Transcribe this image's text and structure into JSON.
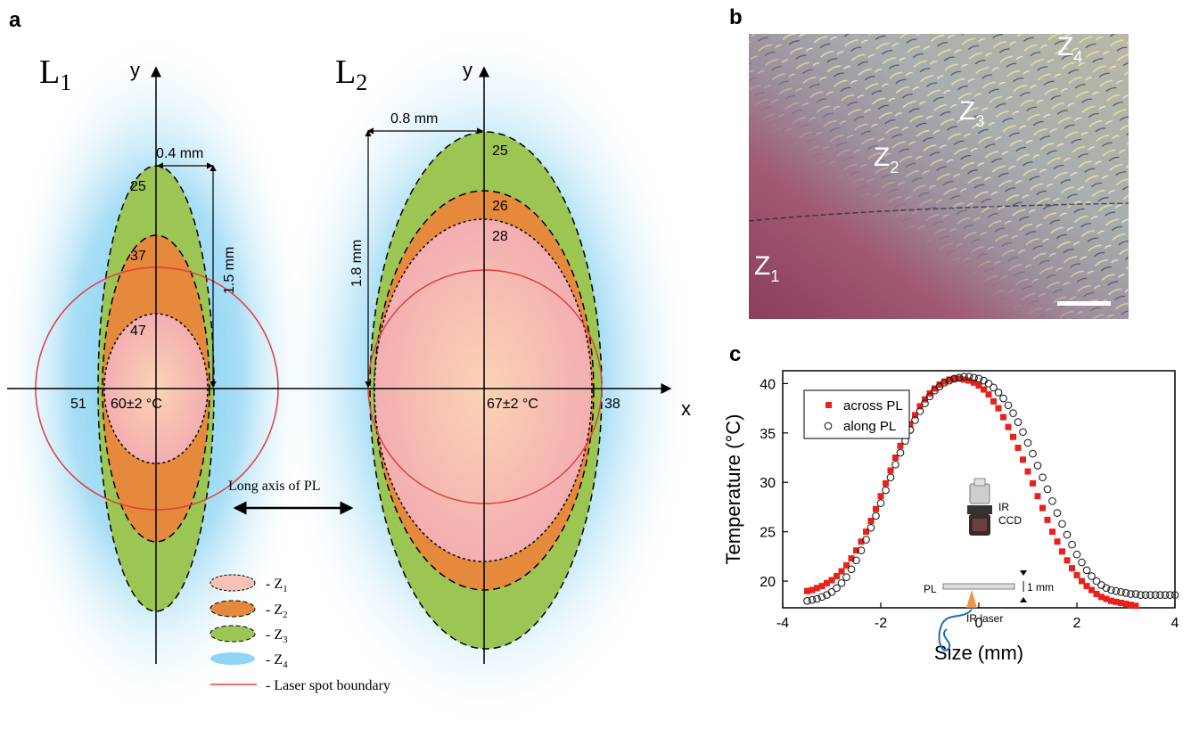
{
  "panel_a": {
    "letter": "a",
    "left": {
      "name": "L",
      "sub": "1",
      "axis_y": "y",
      "width_label": "0.4 mm",
      "height_label": "1.5 mm",
      "temps": [
        "25",
        "37",
        "47",
        "60±2 °C",
        "51"
      ]
    },
    "right": {
      "name": "L",
      "sub": "2",
      "axis_y": "y",
      "width_label": "0.8 mm",
      "height_label": "1.8 mm",
      "temps": [
        "25",
        "26",
        "28",
        "67±2 °C",
        "38"
      ]
    },
    "axis_x": "x",
    "arrow_label": "Long axis of PL",
    "legend": [
      {
        "label": "- Z",
        "sub": "1"
      },
      {
        "label": "- Z",
        "sub": "2"
      },
      {
        "label": "- Z",
        "sub": "3"
      },
      {
        "label": "- Z",
        "sub": "4"
      },
      {
        "label": "- Laser spot boundary",
        "sub": ""
      }
    ],
    "colors": {
      "z1": "#f6c2b8",
      "z2": "#e58a3c",
      "z3": "#9cc653",
      "z4": "#9fdcf4",
      "laser": "#e53c3c"
    }
  },
  "panel_b": {
    "letter": "b",
    "zones": [
      {
        "label": "Z",
        "sub": "1"
      },
      {
        "label": "Z",
        "sub": "2"
      },
      {
        "label": "Z",
        "sub": "3"
      },
      {
        "label": "Z",
        "sub": "4"
      }
    ]
  },
  "panel_c": {
    "letter": "c",
    "inset": {
      "camera": "IR",
      "camera2": "CCD",
      "pl": "PL",
      "thickness": "1 mm",
      "laser": "IR laser"
    }
  },
  "chart_data": {
    "type": "scatter",
    "xlabel": "Size (mm)",
    "ylabel": "Temperature (°C)",
    "xlim": [
      -4,
      4
    ],
    "ylim": [
      17.3,
      41.3
    ],
    "xticks": [
      "-4",
      "-2",
      "0",
      "2",
      "4"
    ],
    "yticks": [
      "20",
      "25",
      "30",
      "35",
      "40"
    ],
    "legend_position": "top-left",
    "series": [
      {
        "name": "across PL",
        "marker": "filled-square",
        "color": "#e8211b",
        "x": [
          -3.5,
          -3.4,
          -3.3,
          -3.2,
          -3.1,
          -3.0,
          -2.9,
          -2.8,
          -2.7,
          -2.6,
          -2.5,
          -2.4,
          -2.3,
          -2.2,
          -2.1,
          -2.0,
          -1.9,
          -1.8,
          -1.7,
          -1.6,
          -1.5,
          -1.4,
          -1.3,
          -1.2,
          -1.1,
          -1.0,
          -0.9,
          -0.8,
          -0.7,
          -0.6,
          -0.5,
          -0.4,
          -0.3,
          -0.2,
          -0.1,
          0.0,
          0.1,
          0.2,
          0.3,
          0.4,
          0.5,
          0.6,
          0.7,
          0.8,
          0.9,
          1.0,
          1.1,
          1.2,
          1.3,
          1.4,
          1.5,
          1.6,
          1.7,
          1.8,
          1.9,
          2.0,
          2.1,
          2.2,
          2.3,
          2.4,
          2.5,
          2.6,
          2.7,
          2.8,
          2.9,
          3.0,
          3.1,
          3.2
        ],
        "y": [
          19.0,
          19.1,
          19.3,
          19.5,
          19.8,
          20.1,
          20.5,
          21.0,
          21.6,
          22.3,
          23.1,
          24.0,
          25.0,
          26.1,
          27.3,
          28.6,
          29.9,
          31.2,
          32.5,
          33.7,
          34.9,
          35.9,
          36.8,
          37.7,
          38.4,
          39.0,
          39.5,
          39.9,
          40.2,
          40.4,
          40.5,
          40.5,
          40.4,
          40.3,
          40.1,
          39.8,
          39.4,
          38.9,
          38.2,
          37.5,
          36.6,
          35.6,
          34.6,
          33.5,
          32.3,
          31.1,
          29.9,
          28.6,
          27.4,
          26.2,
          25.0,
          24.0,
          23.0,
          22.1,
          21.3,
          20.6,
          20.0,
          19.5,
          19.1,
          18.7,
          18.4,
          18.2,
          18.0,
          17.9,
          17.8,
          17.7,
          17.6,
          17.5
        ]
      },
      {
        "name": "along PL",
        "marker": "open-circle",
        "color": "#222222",
        "x": [
          -3.5,
          -3.4,
          -3.3,
          -3.2,
          -3.1,
          -3.0,
          -2.9,
          -2.8,
          -2.7,
          -2.6,
          -2.5,
          -2.4,
          -2.3,
          -2.2,
          -2.1,
          -2.0,
          -1.9,
          -1.8,
          -1.7,
          -1.6,
          -1.5,
          -1.4,
          -1.3,
          -1.2,
          -1.1,
          -1.0,
          -0.9,
          -0.8,
          -0.7,
          -0.6,
          -0.5,
          -0.4,
          -0.3,
          -0.2,
          -0.1,
          0.0,
          0.1,
          0.2,
          0.3,
          0.4,
          0.5,
          0.6,
          0.7,
          0.8,
          0.9,
          1.0,
          1.1,
          1.2,
          1.3,
          1.4,
          1.5,
          1.6,
          1.7,
          1.8,
          1.9,
          2.0,
          2.1,
          2.2,
          2.3,
          2.4,
          2.5,
          2.6,
          2.7,
          2.8,
          2.9,
          3.0,
          3.1,
          3.2,
          3.3,
          3.4,
          3.5,
          3.6,
          3.7,
          3.8,
          3.9,
          4.0
        ],
        "y": [
          18.0,
          18.1,
          18.2,
          18.4,
          18.6,
          18.9,
          19.3,
          19.8,
          20.4,
          21.2,
          22.1,
          23.1,
          24.2,
          25.4,
          26.6,
          27.9,
          29.2,
          30.5,
          31.8,
          33.0,
          34.2,
          35.3,
          36.3,
          37.2,
          38.0,
          38.7,
          39.3,
          39.7,
          40.1,
          40.3,
          40.5,
          40.6,
          40.7,
          40.7,
          40.6,
          40.5,
          40.3,
          40.0,
          39.6,
          39.1,
          38.5,
          37.8,
          37.0,
          36.1,
          35.1,
          34.0,
          32.9,
          31.7,
          30.5,
          29.3,
          28.1,
          26.9,
          25.8,
          24.7,
          23.7,
          22.7,
          21.9,
          21.1,
          20.5,
          20.0,
          19.6,
          19.3,
          19.1,
          19.0,
          18.9,
          18.8,
          18.7,
          18.7,
          18.6,
          18.6,
          18.6,
          18.6,
          18.6,
          18.6,
          18.6,
          18.6
        ]
      }
    ]
  }
}
